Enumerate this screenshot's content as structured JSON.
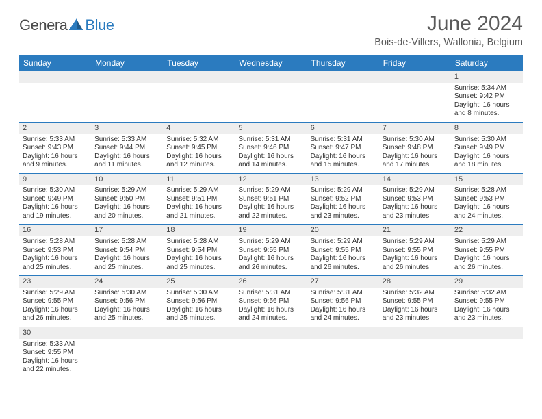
{
  "logo": {
    "text1": "Genera",
    "text2": "Blue"
  },
  "title": "June 2024",
  "location": "Bois-de-Villers, Wallonia, Belgium",
  "colors": {
    "header_bg": "#2b7bbf",
    "header_text": "#ffffff",
    "daynum_bg": "#eeeeee",
    "border": "#2b7bbf",
    "text": "#333333",
    "title_text": "#5a5a5a"
  },
  "fonts": {
    "title_size": 30,
    "location_size": 14.5,
    "header_size": 12,
    "cell_size": 10,
    "daynum_size": 11
  },
  "day_headers": [
    "Sunday",
    "Monday",
    "Tuesday",
    "Wednesday",
    "Thursday",
    "Friday",
    "Saturday"
  ],
  "weeks": [
    [
      {
        "day": "",
        "lines": [
          "",
          "",
          "",
          ""
        ]
      },
      {
        "day": "",
        "lines": [
          "",
          "",
          "",
          ""
        ]
      },
      {
        "day": "",
        "lines": [
          "",
          "",
          "",
          ""
        ]
      },
      {
        "day": "",
        "lines": [
          "",
          "",
          "",
          ""
        ]
      },
      {
        "day": "",
        "lines": [
          "",
          "",
          "",
          ""
        ]
      },
      {
        "day": "",
        "lines": [
          "",
          "",
          "",
          ""
        ]
      },
      {
        "day": "1",
        "lines": [
          "Sunrise: 5:34 AM",
          "Sunset: 9:42 PM",
          "Daylight: 16 hours",
          "and 8 minutes."
        ]
      }
    ],
    [
      {
        "day": "2",
        "lines": [
          "Sunrise: 5:33 AM",
          "Sunset: 9:43 PM",
          "Daylight: 16 hours",
          "and 9 minutes."
        ]
      },
      {
        "day": "3",
        "lines": [
          "Sunrise: 5:33 AM",
          "Sunset: 9:44 PM",
          "Daylight: 16 hours",
          "and 11 minutes."
        ]
      },
      {
        "day": "4",
        "lines": [
          "Sunrise: 5:32 AM",
          "Sunset: 9:45 PM",
          "Daylight: 16 hours",
          "and 12 minutes."
        ]
      },
      {
        "day": "5",
        "lines": [
          "Sunrise: 5:31 AM",
          "Sunset: 9:46 PM",
          "Daylight: 16 hours",
          "and 14 minutes."
        ]
      },
      {
        "day": "6",
        "lines": [
          "Sunrise: 5:31 AM",
          "Sunset: 9:47 PM",
          "Daylight: 16 hours",
          "and 15 minutes."
        ]
      },
      {
        "day": "7",
        "lines": [
          "Sunrise: 5:30 AM",
          "Sunset: 9:48 PM",
          "Daylight: 16 hours",
          "and 17 minutes."
        ]
      },
      {
        "day": "8",
        "lines": [
          "Sunrise: 5:30 AM",
          "Sunset: 9:49 PM",
          "Daylight: 16 hours",
          "and 18 minutes."
        ]
      }
    ],
    [
      {
        "day": "9",
        "lines": [
          "Sunrise: 5:30 AM",
          "Sunset: 9:49 PM",
          "Daylight: 16 hours",
          "and 19 minutes."
        ]
      },
      {
        "day": "10",
        "lines": [
          "Sunrise: 5:29 AM",
          "Sunset: 9:50 PM",
          "Daylight: 16 hours",
          "and 20 minutes."
        ]
      },
      {
        "day": "11",
        "lines": [
          "Sunrise: 5:29 AM",
          "Sunset: 9:51 PM",
          "Daylight: 16 hours",
          "and 21 minutes."
        ]
      },
      {
        "day": "12",
        "lines": [
          "Sunrise: 5:29 AM",
          "Sunset: 9:51 PM",
          "Daylight: 16 hours",
          "and 22 minutes."
        ]
      },
      {
        "day": "13",
        "lines": [
          "Sunrise: 5:29 AM",
          "Sunset: 9:52 PM",
          "Daylight: 16 hours",
          "and 23 minutes."
        ]
      },
      {
        "day": "14",
        "lines": [
          "Sunrise: 5:29 AM",
          "Sunset: 9:53 PM",
          "Daylight: 16 hours",
          "and 23 minutes."
        ]
      },
      {
        "day": "15",
        "lines": [
          "Sunrise: 5:28 AM",
          "Sunset: 9:53 PM",
          "Daylight: 16 hours",
          "and 24 minutes."
        ]
      }
    ],
    [
      {
        "day": "16",
        "lines": [
          "Sunrise: 5:28 AM",
          "Sunset: 9:53 PM",
          "Daylight: 16 hours",
          "and 25 minutes."
        ]
      },
      {
        "day": "17",
        "lines": [
          "Sunrise: 5:28 AM",
          "Sunset: 9:54 PM",
          "Daylight: 16 hours",
          "and 25 minutes."
        ]
      },
      {
        "day": "18",
        "lines": [
          "Sunrise: 5:28 AM",
          "Sunset: 9:54 PM",
          "Daylight: 16 hours",
          "and 25 minutes."
        ]
      },
      {
        "day": "19",
        "lines": [
          "Sunrise: 5:29 AM",
          "Sunset: 9:55 PM",
          "Daylight: 16 hours",
          "and 26 minutes."
        ]
      },
      {
        "day": "20",
        "lines": [
          "Sunrise: 5:29 AM",
          "Sunset: 9:55 PM",
          "Daylight: 16 hours",
          "and 26 minutes."
        ]
      },
      {
        "day": "21",
        "lines": [
          "Sunrise: 5:29 AM",
          "Sunset: 9:55 PM",
          "Daylight: 16 hours",
          "and 26 minutes."
        ]
      },
      {
        "day": "22",
        "lines": [
          "Sunrise: 5:29 AM",
          "Sunset: 9:55 PM",
          "Daylight: 16 hours",
          "and 26 minutes."
        ]
      }
    ],
    [
      {
        "day": "23",
        "lines": [
          "Sunrise: 5:29 AM",
          "Sunset: 9:55 PM",
          "Daylight: 16 hours",
          "and 26 minutes."
        ]
      },
      {
        "day": "24",
        "lines": [
          "Sunrise: 5:30 AM",
          "Sunset: 9:56 PM",
          "Daylight: 16 hours",
          "and 25 minutes."
        ]
      },
      {
        "day": "25",
        "lines": [
          "Sunrise: 5:30 AM",
          "Sunset: 9:56 PM",
          "Daylight: 16 hours",
          "and 25 minutes."
        ]
      },
      {
        "day": "26",
        "lines": [
          "Sunrise: 5:31 AM",
          "Sunset: 9:56 PM",
          "Daylight: 16 hours",
          "and 24 minutes."
        ]
      },
      {
        "day": "27",
        "lines": [
          "Sunrise: 5:31 AM",
          "Sunset: 9:56 PM",
          "Daylight: 16 hours",
          "and 24 minutes."
        ]
      },
      {
        "day": "28",
        "lines": [
          "Sunrise: 5:32 AM",
          "Sunset: 9:55 PM",
          "Daylight: 16 hours",
          "and 23 minutes."
        ]
      },
      {
        "day": "29",
        "lines": [
          "Sunrise: 5:32 AM",
          "Sunset: 9:55 PM",
          "Daylight: 16 hours",
          "and 23 minutes."
        ]
      }
    ],
    [
      {
        "day": "30",
        "lines": [
          "Sunrise: 5:33 AM",
          "Sunset: 9:55 PM",
          "Daylight: 16 hours",
          "and 22 minutes."
        ]
      },
      {
        "day": "",
        "lines": [
          "",
          "",
          "",
          ""
        ]
      },
      {
        "day": "",
        "lines": [
          "",
          "",
          "",
          ""
        ]
      },
      {
        "day": "",
        "lines": [
          "",
          "",
          "",
          ""
        ]
      },
      {
        "day": "",
        "lines": [
          "",
          "",
          "",
          ""
        ]
      },
      {
        "day": "",
        "lines": [
          "",
          "",
          "",
          ""
        ]
      },
      {
        "day": "",
        "lines": [
          "",
          "",
          "",
          ""
        ]
      }
    ]
  ]
}
